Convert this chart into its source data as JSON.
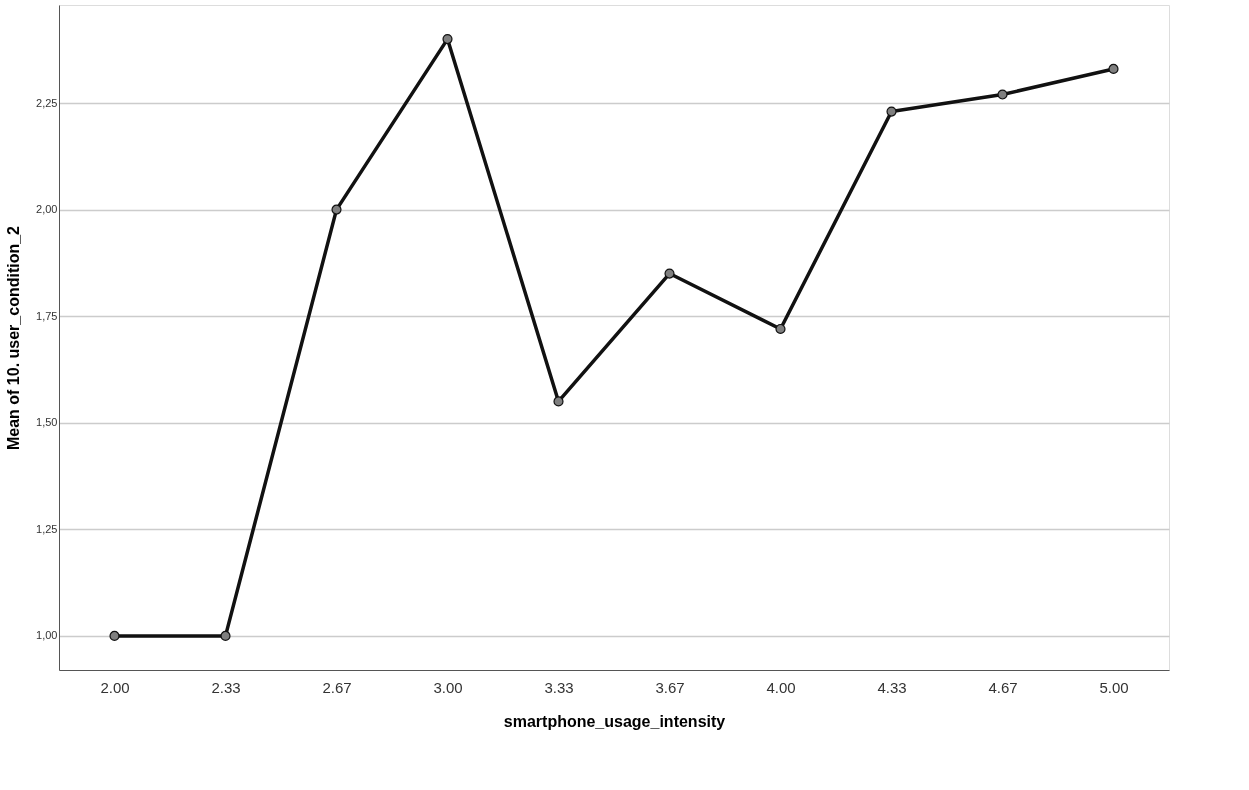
{
  "chart_data": {
    "type": "line",
    "xlabel": "smartphone_usage_intensity",
    "ylabel": "Mean of 10. user_condition_2",
    "categories": [
      "2.00",
      "2.33",
      "2.67",
      "3.00",
      "3.33",
      "3.67",
      "4.00",
      "4.33",
      "4.67",
      "5.00"
    ],
    "series": [
      {
        "color": "#111111",
        "values": [
          1.0,
          1.0,
          2.0,
          2.4,
          1.55,
          1.85,
          1.72,
          2.23,
          2.27,
          2.33
        ]
      }
    ],
    "ylim": [
      0.92,
      2.48
    ],
    "yticks": [
      {
        "value": 1.0,
        "label": "1,00"
      },
      {
        "value": 1.25,
        "label": "1,25"
      },
      {
        "value": 1.5,
        "label": "1,50"
      },
      {
        "value": 1.75,
        "label": "1,75"
      },
      {
        "value": 2.0,
        "label": "2,00"
      },
      {
        "value": 2.25,
        "label": "2,25"
      }
    ],
    "grid": "y",
    "marker": "circle",
    "line_style": "solid"
  }
}
